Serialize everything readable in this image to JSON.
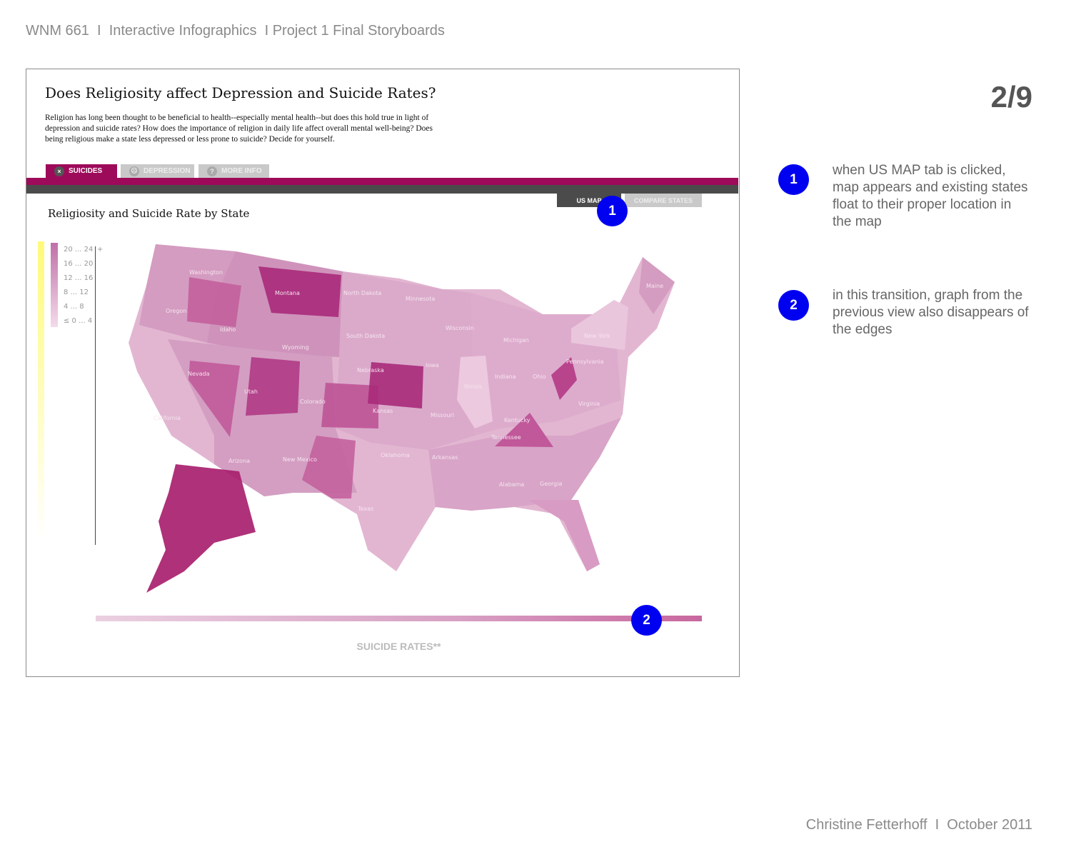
{
  "header": {
    "course": "WNM 661  I  Interactive Infographics  I Project 1 Final Storyboards",
    "page": "2/9"
  },
  "app": {
    "title": "Does Religiosity affect Depression and Suicide Rates?",
    "intro": "Religion has long been thought to be beneficial to health--especially mental health--but does this hold true in light of depression and suicide rates? How does the importance of religion in daily life affect overall mental well-being? Does being religious make a state less depressed or less prone to suicide? Decide for yourself.",
    "tabs": [
      {
        "label": "SUICIDES",
        "icon": "dead-face-icon",
        "glyph": "×"
      },
      {
        "label": "DEPRESSION",
        "icon": "sad-face-icon",
        "glyph": "☹"
      },
      {
        "label": "MORE INFO",
        "icon": "question-icon",
        "glyph": "?"
      }
    ],
    "view_tabs": [
      {
        "label": "US MAP"
      },
      {
        "label": "COMPARE STATES"
      }
    ],
    "map_title": "Religiosity and Suicide Rate by State",
    "legend": [
      "20 ... 24",
      "16 ... 20",
      "12 ... 16",
      "8 ... 12",
      "4 ... 8",
      "≤ 0 ... 4"
    ],
    "legend_plus": "+",
    "states": [
      "Washington",
      "Oregon",
      "Idaho",
      "Montana",
      "North Dakota",
      "Minnesota",
      "Wisconsin",
      "Michigan",
      "South Dakota",
      "Wyoming",
      "Nevada",
      "Utah",
      "Colorado",
      "Nebraska",
      "Iowa",
      "Illinois",
      "Indiana",
      "Ohio",
      "Pennsylvania",
      "New York",
      "Maine",
      "California",
      "Kansas",
      "Missouri",
      "Kentucky",
      "Tennessee",
      "Virginia",
      "Arizona",
      "New Mexico",
      "Oklahoma",
      "Arkansas",
      "Alabama",
      "Georgia",
      "Texas"
    ],
    "scale_label": "SUICIDE RATES**",
    "colors": {
      "accent": "#9e0a5a",
      "dark": "#4b4b4b",
      "badge": "#0000f0"
    }
  },
  "annotations": [
    {
      "number": "1",
      "text": "when US MAP tab is clicked, map appears and existing states float to their proper location in the map"
    },
    {
      "number": "2",
      "text": "in this transition, graph from the previous view also disappears of the edges"
    }
  ],
  "footer": "Christine Fetterhoff  I  October 2011"
}
